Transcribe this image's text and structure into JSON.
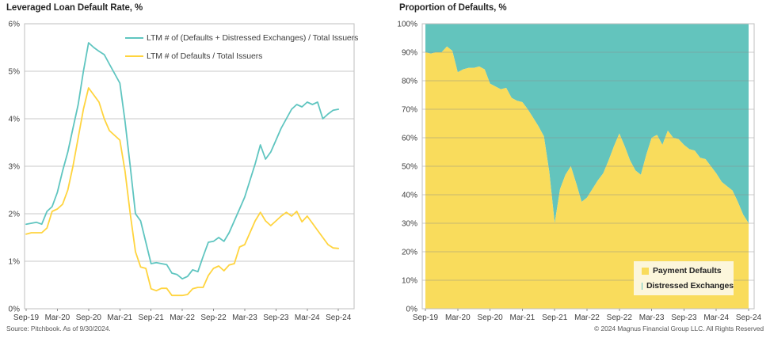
{
  "page": {
    "background": "#FFFFFF"
  },
  "footer": {
    "source": "Source: Pitchbook. As of 9/30/2024.",
    "copyright": "© 2024 Magnus Financial Group LLC. All Rights Reserved"
  },
  "timeline_months": [
    "Sep-19",
    "Oct-19",
    "Nov-19",
    "Dec-19",
    "Jan-20",
    "Feb-20",
    "Mar-20",
    "Apr-20",
    "May-20",
    "Jun-20",
    "Jul-20",
    "Aug-20",
    "Sep-20",
    "Oct-20",
    "Nov-20",
    "Dec-20",
    "Jan-21",
    "Feb-21",
    "Mar-21",
    "Apr-21",
    "May-21",
    "Jun-21",
    "Jul-21",
    "Aug-21",
    "Sep-21",
    "Oct-21",
    "Nov-21",
    "Dec-21",
    "Jan-22",
    "Feb-22",
    "Mar-22",
    "Apr-22",
    "May-22",
    "Jun-22",
    "Jul-22",
    "Aug-22",
    "Sep-22",
    "Oct-22",
    "Nov-22",
    "Dec-22",
    "Jan-23",
    "Feb-23",
    "Mar-23",
    "Apr-23",
    "May-23",
    "Jun-23",
    "Jul-23",
    "Aug-23",
    "Sep-23",
    "Oct-23",
    "Nov-23",
    "Dec-23",
    "Jan-24",
    "Feb-24",
    "Mar-24",
    "Apr-24",
    "May-24",
    "Jun-24",
    "Jul-24",
    "Aug-24",
    "Sep-24"
  ],
  "chart_data": [
    {
      "id": "leveraged-loan-default-rate",
      "type": "line",
      "title": "Leveraged Loan Default Rate, %",
      "x_interval": "monthly",
      "x_start": "Sep-19",
      "x_end": "Sep-24",
      "x_tick_labels": [
        "Sep-19",
        "Mar-20",
        "Sep-20",
        "Mar-21",
        "Sep-21",
        "Mar-22",
        "Sep-22",
        "Mar-23",
        "Sep-23",
        "Mar-24",
        "Sep-24"
      ],
      "ylim": [
        0,
        6
      ],
      "y_tick_step": 1,
      "y_tick_suffix": "%",
      "grid": true,
      "legend_position": "top-inside",
      "series": [
        {
          "name": "LTM # of (Defaults + Distressed Exchanges) / Total Issuers",
          "color": "#5FC5C0",
          "values": [
            1.78,
            1.8,
            1.82,
            1.78,
            2.05,
            2.15,
            2.45,
            2.9,
            3.3,
            3.8,
            4.3,
            5.0,
            5.6,
            5.5,
            5.42,
            5.35,
            5.15,
            4.95,
            4.75,
            3.95,
            3.0,
            2.0,
            1.85,
            1.4,
            0.95,
            0.97,
            0.95,
            0.93,
            0.75,
            0.72,
            0.63,
            0.68,
            0.82,
            0.78,
            1.1,
            1.4,
            1.42,
            1.5,
            1.42,
            1.6,
            1.85,
            2.1,
            2.35,
            2.7,
            3.05,
            3.45,
            3.15,
            3.3,
            3.55,
            3.8,
            4.0,
            4.2,
            4.3,
            4.25,
            4.35,
            4.3,
            4.35,
            4.0,
            4.1,
            4.18,
            4.2
          ]
        },
        {
          "name": "LTM # of Defaults / Total Issuers",
          "color": "#FFD43E",
          "values": [
            1.57,
            1.6,
            1.6,
            1.6,
            1.7,
            2.05,
            2.1,
            2.2,
            2.5,
            3.0,
            3.6,
            4.2,
            4.65,
            4.5,
            4.35,
            4.0,
            3.75,
            3.65,
            3.55,
            2.9,
            2.0,
            1.2,
            0.88,
            0.85,
            0.42,
            0.38,
            0.43,
            0.43,
            0.28,
            0.28,
            0.28,
            0.3,
            0.42,
            0.45,
            0.45,
            0.7,
            0.85,
            0.9,
            0.8,
            0.92,
            0.95,
            1.3,
            1.35,
            1.6,
            1.85,
            2.03,
            1.85,
            1.75,
            1.85,
            1.95,
            2.03,
            1.95,
            2.05,
            1.83,
            1.95,
            1.8,
            1.65,
            1.5,
            1.35,
            1.28,
            1.27
          ]
        }
      ]
    },
    {
      "id": "proportion-of-defaults",
      "type": "area-stacked-100",
      "title": "Proportion of Defaults, %",
      "x_interval": "monthly",
      "x_start": "Sep-19",
      "x_end": "Sep-24",
      "x_tick_labels": [
        "Sep-19",
        "Mar-20",
        "Sep-20",
        "Mar-21",
        "Sep-21",
        "Mar-22",
        "Sep-22",
        "Mar-23",
        "Sep-23",
        "Mar-24",
        "Sep-24"
      ],
      "ylim": [
        0,
        100
      ],
      "y_tick_step": 10,
      "y_tick_suffix": "%",
      "grid": true,
      "legend_position": "bottom-right-inside",
      "series": [
        {
          "name": "Payment Defaults",
          "color": "#F9DC5C",
          "values": [
            90,
            89.5,
            90,
            90,
            92,
            90.5,
            83,
            84,
            84.5,
            84.5,
            85,
            84,
            79,
            78,
            77,
            77.5,
            74,
            73,
            72.5,
            70,
            67,
            64,
            60.5,
            48,
            30,
            42,
            47,
            50,
            44,
            37.5,
            39,
            42,
            45,
            47.5,
            52,
            57,
            61.5,
            57,
            52,
            48.5,
            47,
            54,
            60,
            61,
            57.5,
            62.5,
            60,
            59.5,
            57.5,
            56,
            55.5,
            53,
            52.5,
            50,
            47.5,
            44.5,
            43,
            41.5,
            37.5,
            33,
            30
          ]
        },
        {
          "name": "Distressed Exchanges",
          "color": "#63C4BD",
          "values": [
            10,
            10.5,
            10,
            10,
            8,
            9.5,
            17,
            16,
            15.5,
            15.5,
            15,
            16,
            21,
            22,
            23,
            22.5,
            26,
            27,
            27.5,
            30,
            33,
            36,
            39.5,
            52,
            70,
            58,
            53,
            50,
            56,
            62.5,
            61,
            58,
            55,
            52.5,
            48,
            43,
            38.5,
            43,
            48,
            51.5,
            53,
            46,
            40,
            39,
            42.5,
            37.5,
            40,
            40.5,
            42.5,
            44,
            44.5,
            47,
            47.5,
            50,
            52.5,
            55.5,
            57,
            58.5,
            62.5,
            67,
            70
          ]
        }
      ]
    }
  ]
}
